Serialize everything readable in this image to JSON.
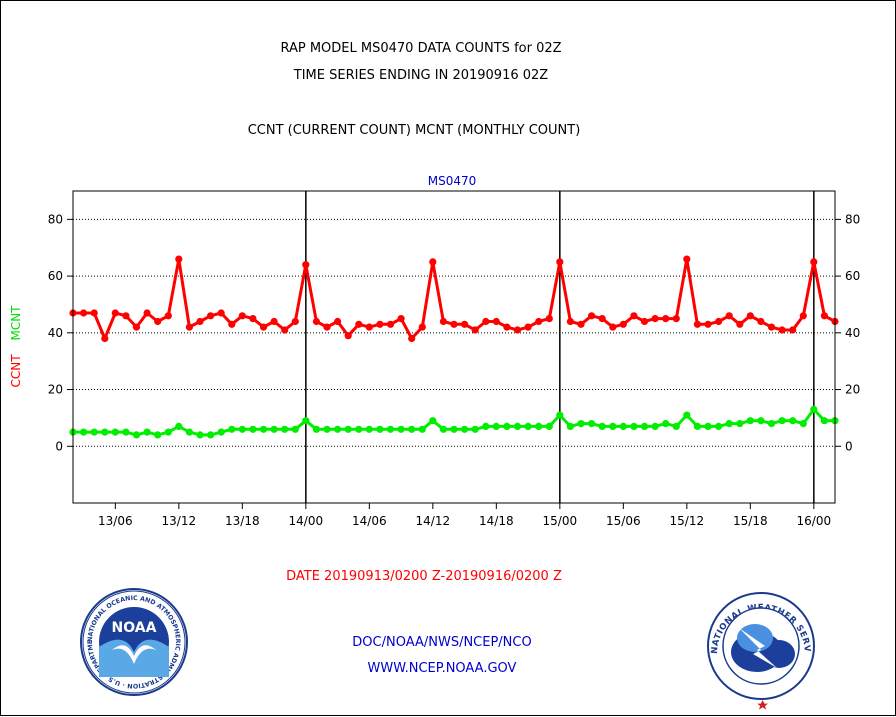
{
  "chart_data": {
    "type": "line",
    "title_lines": [
      "RAP MODEL MS0470 DATA COUNTS for 02Z",
      "TIME SERIES ENDING IN 20190916 02Z"
    ],
    "subtitle": "CCNT (CURRENT COUNT) MCNT (MONTHLY COUNT)",
    "panel_label": "MS0470",
    "ylabel_parts": [
      {
        "text": "CCNT",
        "color": "#ff0000"
      },
      {
        "text": "MCNT",
        "color": "#00dd00"
      }
    ],
    "ylim": [
      -20,
      90
    ],
    "yticks": [
      0,
      20,
      40,
      60,
      80
    ],
    "x_tick_labels": [
      "13/06",
      "13/12",
      "13/18",
      "14/00",
      "14/06",
      "14/12",
      "14/18",
      "15/00",
      "15/06",
      "15/12",
      "15/18",
      "16/00"
    ],
    "x_tick_hours": [
      6,
      12,
      18,
      24,
      30,
      36,
      42,
      48,
      54,
      60,
      66,
      72
    ],
    "xlim_hours": [
      2,
      74
    ],
    "day_boundaries_hours": [
      24,
      48,
      72
    ],
    "x_hours": [
      2,
      3,
      4,
      5,
      6,
      7,
      8,
      9,
      10,
      11,
      12,
      13,
      14,
      15,
      16,
      17,
      18,
      19,
      20,
      21,
      22,
      23,
      24,
      25,
      26,
      27,
      28,
      29,
      30,
      31,
      32,
      33,
      34,
      35,
      36,
      37,
      38,
      39,
      40,
      41,
      42,
      43,
      44,
      45,
      46,
      47,
      48,
      49,
      50,
      51,
      52,
      53,
      54,
      55,
      56,
      57,
      58,
      59,
      60,
      61,
      62,
      63,
      64,
      65,
      66,
      67,
      68,
      69,
      70,
      71,
      72,
      73,
      74
    ],
    "series": [
      {
        "name": "CCNT",
        "color": "#ff0000",
        "values": [
          47,
          47,
          47,
          38,
          47,
          46,
          42,
          47,
          44,
          46,
          66,
          42,
          44,
          46,
          47,
          43,
          46,
          45,
          42,
          44,
          41,
          44,
          64,
          44,
          42,
          44,
          39,
          43,
          42,
          43,
          43,
          45,
          38,
          42,
          65,
          44,
          43,
          43,
          41,
          44,
          44,
          42,
          41,
          42,
          44,
          45,
          65,
          44,
          43,
          46,
          45,
          42,
          43,
          46,
          44,
          45,
          45,
          45,
          66,
          43,
          43,
          44,
          46,
          43,
          46,
          44,
          42,
          41,
          41,
          46,
          65,
          46,
          44
        ]
      },
      {
        "name": "MCNT",
        "color": "#00ee00",
        "values": [
          5,
          5,
          5,
          5,
          5,
          5,
          4,
          5,
          4,
          5,
          7,
          5,
          4,
          4,
          5,
          6,
          6,
          6,
          6,
          6,
          6,
          6,
          9,
          6,
          6,
          6,
          6,
          6,
          6,
          6,
          6,
          6,
          6,
          6,
          9,
          6,
          6,
          6,
          6,
          7,
          7,
          7,
          7,
          7,
          7,
          7,
          11,
          7,
          8,
          8,
          7,
          7,
          7,
          7,
          7,
          7,
          8,
          7,
          11,
          7,
          7,
          7,
          8,
          8,
          9,
          9,
          8,
          9,
          9,
          8,
          13,
          9,
          9
        ]
      }
    ]
  },
  "footer": {
    "date_range": "DATE 20190913/0200 Z-20190916/0200 Z",
    "org_line": "DOC/NOAA/NWS/NCEP/NCO",
    "url_line": "WWW.NCEP.NOAA.GOV"
  },
  "logos": {
    "noaa": {
      "text": "NOAA",
      "ring_text": "NATIONAL OCEANIC AND ATMOSPHERIC ADMINISTRATION · U.S. DEPARTMENT OF COMMERCE",
      "icon": "noaa-logo"
    },
    "nws": {
      "ring_text": "NATIONAL WEATHER SERVICE",
      "icon": "nws-logo"
    }
  },
  "colors": {
    "ccnt": "#ff0000",
    "mcnt": "#00ee00",
    "blue_text": "#0000cc",
    "date_text": "#ff0000"
  }
}
